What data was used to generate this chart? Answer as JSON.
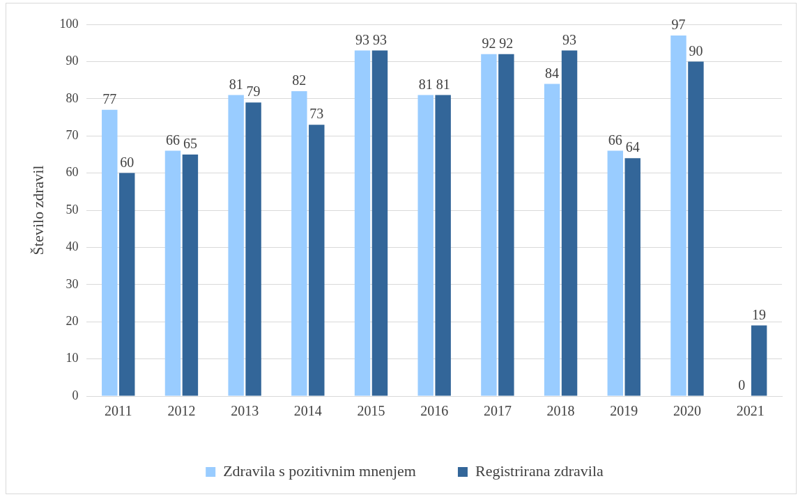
{
  "chart_data": {
    "type": "bar",
    "ylabel": "Število zdravil",
    "categories": [
      "2011",
      "2012",
      "2013",
      "2014",
      "2015",
      "2016",
      "2017",
      "2018",
      "2019",
      "2020",
      "2021"
    ],
    "series": [
      {
        "name": "Zdravila s pozitivnim mnenjem",
        "color": "#99ccff",
        "values": [
          77,
          66,
          81,
          82,
          93,
          81,
          92,
          84,
          66,
          97,
          0
        ]
      },
      {
        "name": "Registrirana zdravila",
        "color": "#336699",
        "values": [
          60,
          65,
          79,
          73,
          93,
          81,
          92,
          93,
          64,
          90,
          19
        ]
      }
    ],
    "ylim": [
      0,
      100
    ],
    "yticks": [
      0,
      10,
      20,
      30,
      40,
      50,
      60,
      70,
      80,
      90,
      100
    ],
    "grid": "y",
    "legend": "bottom",
    "data_labels": true
  }
}
